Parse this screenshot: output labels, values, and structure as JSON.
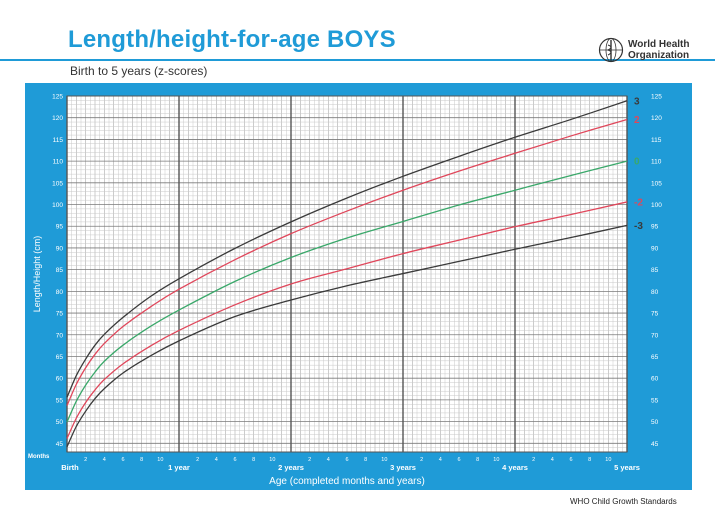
{
  "header": {
    "title": "Length/height-for-age BOYS",
    "subtitle": "Birth to 5 years (z-scores)",
    "org_line1": "World Health",
    "org_line2": "Organization"
  },
  "footer": {
    "text": "WHO Child Growth Standards"
  },
  "colors": {
    "brand_blue": "#1f9bd7",
    "black_curve": "#3a3a3a",
    "red_curve": "#e0475b",
    "green_curve": "#3aa86a"
  },
  "chart_data": {
    "type": "line",
    "title": "Length/height-for-age BOYS",
    "subtitle": "Birth to 5 years (z-scores)",
    "xlabel": "Age (completed months and years)",
    "ylabel": "Length/Height (cm)",
    "xlim": [
      0,
      60
    ],
    "ylim": [
      43,
      125
    ],
    "grid": true,
    "months_label": "Months",
    "y_ticks": [
      45,
      50,
      55,
      60,
      65,
      70,
      75,
      80,
      85,
      90,
      95,
      100,
      105,
      110,
      115,
      120,
      125
    ],
    "x_major_ticks": [
      {
        "x": 0,
        "label": "Birth"
      },
      {
        "x": 12,
        "label": "1 year"
      },
      {
        "x": 24,
        "label": "2 years"
      },
      {
        "x": 36,
        "label": "3 years"
      },
      {
        "x": 48,
        "label": "4 years"
      },
      {
        "x": 60,
        "label": "5 years"
      }
    ],
    "x_minor_ticks": [
      {
        "x": 2,
        "label": "2"
      },
      {
        "x": 4,
        "label": "4"
      },
      {
        "x": 6,
        "label": "6"
      },
      {
        "x": 8,
        "label": "8"
      },
      {
        "x": 10,
        "label": "10"
      },
      {
        "x": 14,
        "label": "2"
      },
      {
        "x": 16,
        "label": "4"
      },
      {
        "x": 18,
        "label": "6"
      },
      {
        "x": 20,
        "label": "8"
      },
      {
        "x": 22,
        "label": "10"
      },
      {
        "x": 26,
        "label": "2"
      },
      {
        "x": 28,
        "label": "4"
      },
      {
        "x": 30,
        "label": "6"
      },
      {
        "x": 32,
        "label": "8"
      },
      {
        "x": 34,
        "label": "10"
      },
      {
        "x": 38,
        "label": "2"
      },
      {
        "x": 40,
        "label": "4"
      },
      {
        "x": 42,
        "label": "6"
      },
      {
        "x": 44,
        "label": "8"
      },
      {
        "x": 46,
        "label": "10"
      },
      {
        "x": 50,
        "label": "2"
      },
      {
        "x": 52,
        "label": "4"
      },
      {
        "x": 54,
        "label": "6"
      },
      {
        "x": 56,
        "label": "8"
      },
      {
        "x": 58,
        "label": "10"
      }
    ],
    "x": [
      0,
      1,
      2,
      3,
      4,
      6,
      9,
      12,
      18,
      24,
      30,
      36,
      42,
      48,
      54,
      60
    ],
    "series": [
      {
        "name": "3",
        "color": "#3a3a3a",
        "values": [
          55.6,
          60.6,
          64.4,
          67.6,
          70.1,
          74.0,
          78.9,
          82.9,
          89.9,
          96.0,
          101.5,
          106.5,
          111.1,
          115.5,
          119.6,
          123.9
        ]
      },
      {
        "name": "2",
        "color": "#e0475b",
        "values": [
          53.7,
          58.6,
          62.4,
          65.5,
          68.0,
          71.9,
          76.5,
          80.5,
          87.3,
          93.3,
          98.5,
          103.3,
          107.7,
          111.8,
          115.8,
          119.6
        ]
      },
      {
        "name": "0",
        "color": "#3aa86a",
        "values": [
          49.9,
          54.7,
          58.4,
          61.4,
          63.9,
          67.6,
          72.0,
          75.7,
          82.3,
          87.8,
          92.3,
          96.1,
          99.9,
          103.3,
          106.7,
          110.0
        ]
      },
      {
        "name": "-2",
        "color": "#e0475b",
        "values": [
          46.1,
          50.8,
          54.4,
          57.3,
          59.7,
          63.3,
          67.5,
          71.0,
          76.9,
          81.7,
          85.2,
          88.7,
          91.8,
          94.9,
          97.7,
          100.6
        ]
      },
      {
        "name": "-3",
        "color": "#3a3a3a",
        "values": [
          44.2,
          48.9,
          52.4,
          55.3,
          57.6,
          61.2,
          65.2,
          68.6,
          74.2,
          78.0,
          81.3,
          84.1,
          86.9,
          89.7,
          92.4,
          95.2
        ]
      }
    ]
  }
}
